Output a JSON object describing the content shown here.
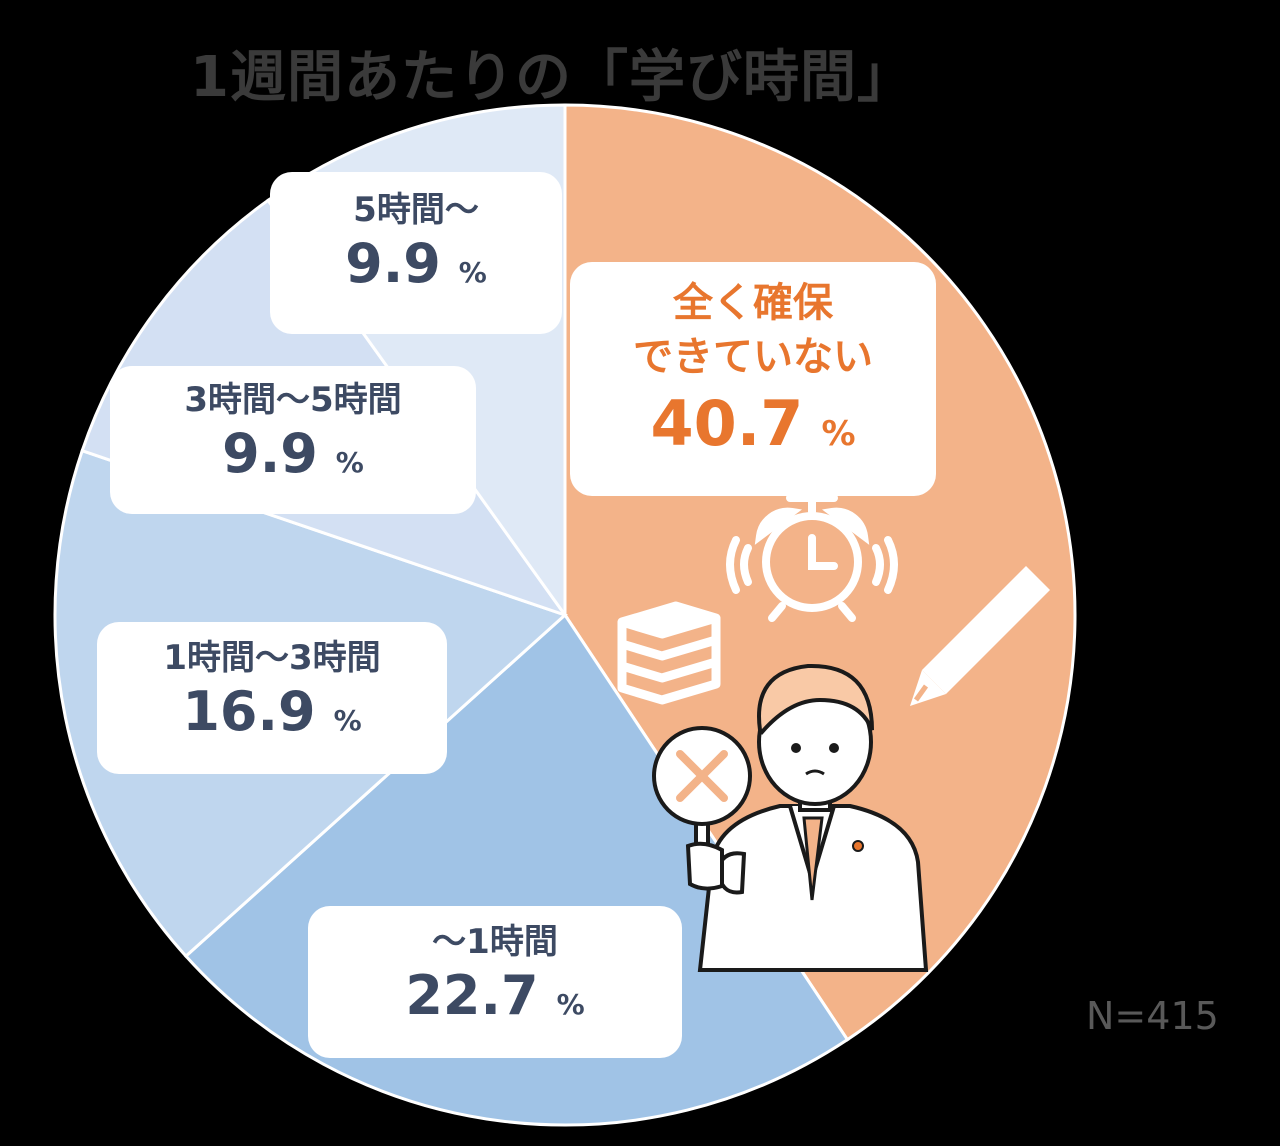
{
  "title": "1週間あたりの「学び時間」",
  "note": "N=415",
  "chart_data": {
    "type": "pie",
    "title": "1週間あたりの「学び時間」",
    "start": "12 o'clock",
    "direction": "clockwise",
    "unit": "%",
    "categories": [
      "全く確保できていない",
      "〜1時間",
      "1時間〜3時間",
      "3時間〜5時間",
      "5時間〜"
    ],
    "values": [
      40.7,
      22.7,
      16.9,
      9.9,
      9.9
    ],
    "colors": [
      "#f3b389",
      "#a0c3e6",
      "#bfd6ee",
      "#d3e0f3",
      "#dfe9f6"
    ],
    "labels": [
      {
        "cat": "全く確保できていない",
        "cat_line1": "全く確保",
        "cat_line2": "できていない",
        "value": "40.7",
        "unit": "%"
      },
      {
        "cat": "〜1時間",
        "value": "22.7",
        "unit": "%"
      },
      {
        "cat": "1時間〜3時間",
        "value": "16.9",
        "unit": "%"
      },
      {
        "cat": "3時間〜5時間",
        "value": "9.9",
        "unit": "%"
      },
      {
        "cat": "5時間〜",
        "value": "9.9",
        "unit": "%"
      }
    ]
  },
  "icons": [
    "alarm-clock-icon",
    "pencil-icon",
    "books-icon",
    "no-sign-icon",
    "businessman-illustration"
  ]
}
